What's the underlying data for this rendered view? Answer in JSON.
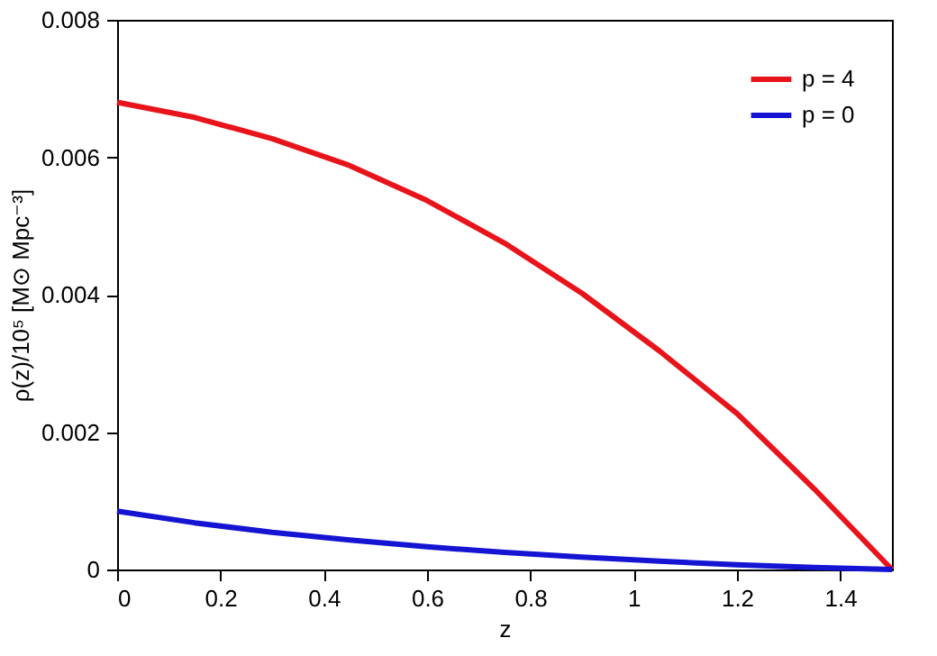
{
  "chart_data": {
    "type": "line",
    "xlabel": "z",
    "ylabel": "ρ(z)/10⁵ [M⊙ Mpc⁻³]",
    "xlim": [
      0,
      1.5
    ],
    "xticks": [
      0,
      0.2,
      0.4,
      0.6,
      0.8,
      1,
      1.2,
      1.4
    ],
    "ylim": [
      0,
      0.008
    ],
    "yticks": [
      0,
      0.002,
      0.004,
      0.006,
      0.008
    ],
    "x": [
      0,
      0.15,
      0.3,
      0.45,
      0.6,
      0.75,
      0.9,
      1.05,
      1.2,
      1.35,
      1.5
    ],
    "series": [
      {
        "name": "p = 4",
        "color": "#e8141b",
        "values": [
          0.0068,
          0.00658,
          0.00627,
          0.00588,
          0.00537,
          0.00475,
          0.00402,
          0.00318,
          0.00227,
          0.00117,
          0
        ]
      },
      {
        "name": "p = 0",
        "color": "#1414d2",
        "values": [
          0.00085,
          0.00068,
          0.00054,
          0.00043,
          0.00033,
          0.00025,
          0.00018,
          0.00012,
          7e-05,
          3e-05,
          0
        ]
      }
    ],
    "legend": "top right",
    "grid": false,
    "marker": "none",
    "line_style": "solid"
  }
}
